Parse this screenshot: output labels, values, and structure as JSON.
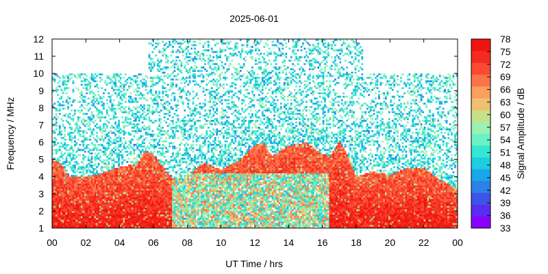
{
  "chart_data": {
    "type": "heatmap",
    "title": "2025-06-01",
    "xlabel": "UT Time / hrs",
    "ylabel": "Frequency / MHz",
    "xlim": [
      0,
      24
    ],
    "ylim": [
      1,
      12
    ],
    "x_tick_labels": [
      "00",
      "02",
      "04",
      "06",
      "08",
      "10",
      "12",
      "14",
      "16",
      "18",
      "20",
      "22",
      "00"
    ],
    "y_tick_labels": [
      "1",
      "2",
      "3",
      "4",
      "5",
      "6",
      "7",
      "8",
      "9",
      "10",
      "11",
      "12"
    ],
    "colorbar": {
      "label": "Signal Amplitude / dB",
      "range": [
        33,
        78
      ],
      "tick_labels": [
        "33",
        "36",
        "39",
        "42",
        "45",
        "48",
        "51",
        "54",
        "57",
        "60",
        "63",
        "66",
        "69",
        "72",
        "75",
        "78"
      ],
      "colors": [
        "#8a00ff",
        "#5a2cf0",
        "#3c55e6",
        "#2f7fe8",
        "#1aa6ea",
        "#1ecde0",
        "#35e6d0",
        "#6af2c4",
        "#9cf0b2",
        "#c6e08a",
        "#f0c070",
        "#f8a05c",
        "#fb7448",
        "#fa4a33",
        "#f42b1f",
        "#f01410"
      ]
    },
    "high_amplitude_boundary": {
      "description": "approximate upper frequency of the strong-signal (red) region",
      "time_hr": [
        0.0,
        0.5,
        1.0,
        2.0,
        3.0,
        4.0,
        5.0,
        5.5,
        6.0,
        7.0,
        8.0,
        9.0,
        10.0,
        11.0,
        12.0,
        12.5,
        13.0,
        14.0,
        14.5,
        15.0,
        16.0,
        16.5,
        17.0,
        17.5,
        18.0,
        19.0,
        20.0,
        21.0,
        22.0,
        23.0,
        24.0
      ],
      "freq_mhz": [
        5.0,
        4.8,
        4.0,
        4.0,
        4.2,
        4.6,
        4.7,
        5.5,
        5.3,
        4.0,
        4.1,
        4.8,
        4.4,
        4.9,
        5.8,
        6.0,
        5.2,
        5.8,
        5.9,
        6.0,
        5.3,
        5.2,
        6.1,
        5.2,
        4.0,
        4.3,
        4.1,
        4.5,
        4.5,
        3.8,
        3.3
      ]
    }
  }
}
